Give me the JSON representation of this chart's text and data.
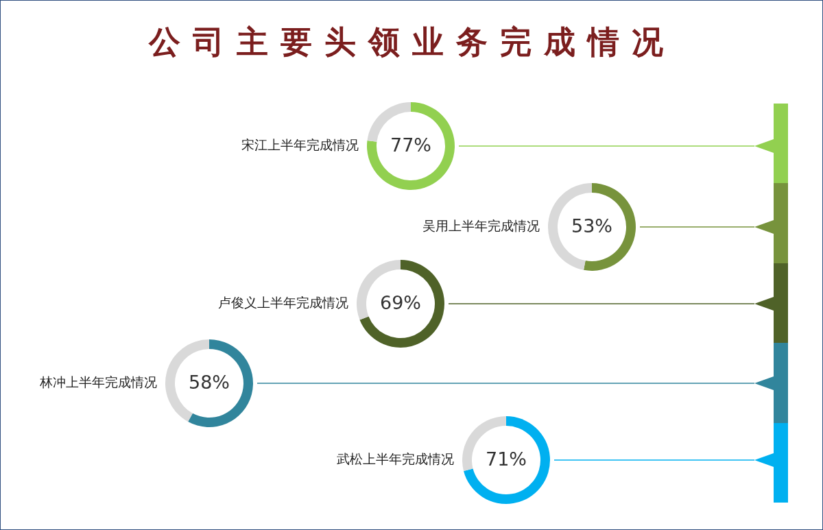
{
  "chart_data": [
    {
      "type": "other",
      "title": "公司主要头领业务完成情况"
    },
    {
      "type": "donut",
      "title": "宋江上半年完成情况",
      "categories": [
        null,
        null
      ],
      "values": [
        77,
        23
      ],
      "colors": [
        "#92d050",
        "#d9d9d9"
      ],
      "value_labels": [
        "77%",
        null
      ]
    },
    {
      "type": "donut",
      "title": "吴用上半年完成情况",
      "categories": [
        null,
        null
      ],
      "values": [
        53,
        47
      ],
      "colors": [
        "#77933c",
        "#d9d9d9"
      ],
      "value_labels": [
        "53%",
        null
      ]
    },
    {
      "type": "donut",
      "title": "卢俊义上半年完成情况",
      "categories": [
        null,
        null
      ],
      "values": [
        69,
        31
      ],
      "colors": [
        "#4f6228",
        "#d9d9d9"
      ],
      "value_labels": [
        "69%",
        null
      ]
    },
    {
      "type": "donut",
      "title": "林冲上半年完成情况",
      "categories": [
        null,
        null
      ],
      "values": [
        58,
        42
      ],
      "colors": [
        "#31859c",
        "#d9d9d9"
      ],
      "value_labels": [
        "58%",
        null
      ]
    },
    {
      "type": "donut",
      "title": "武松上半年完成情况",
      "categories": [
        null,
        null
      ],
      "values": [
        71,
        29
      ],
      "colors": [
        "#00b0f0",
        "#d9d9d9"
      ],
      "value_labels": [
        "71%",
        null
      ]
    }
  ]
}
